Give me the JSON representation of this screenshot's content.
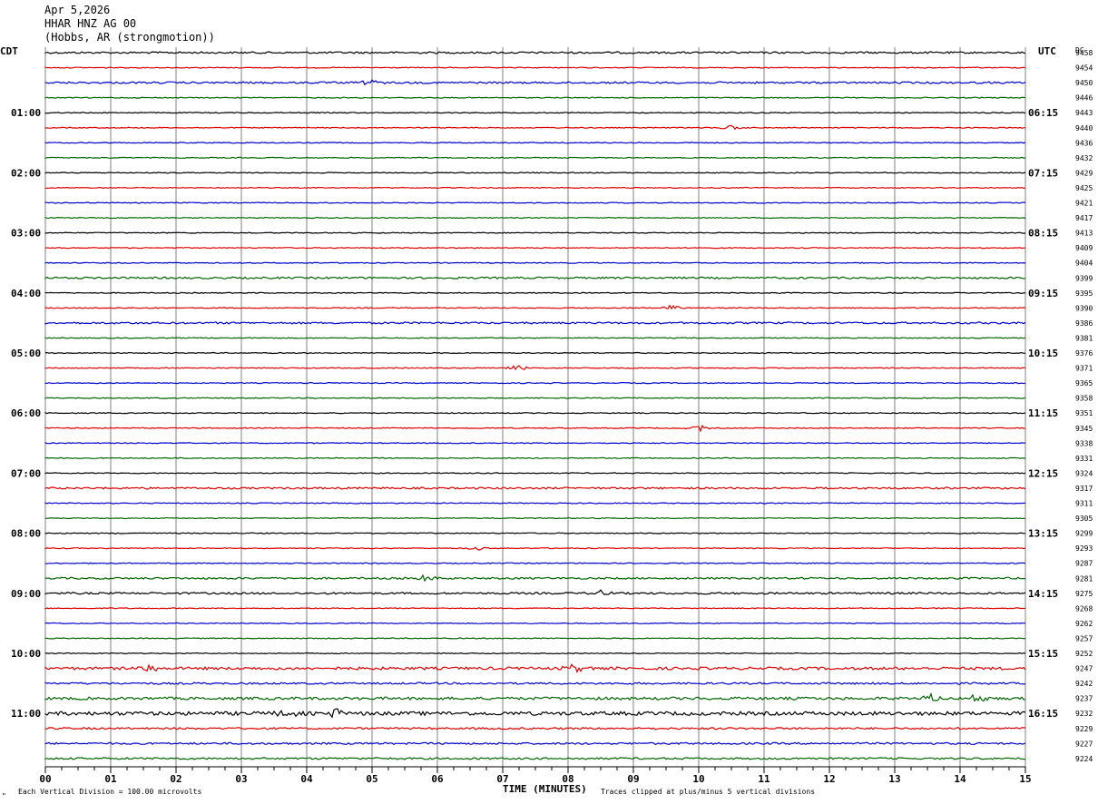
{
  "header": {
    "date": "Apr 5,2026",
    "channel": "HHAR HNZ AG 00",
    "location": "(Hobbs, AR (strongmotion))"
  },
  "labels": {
    "left_zone": "CDT",
    "right_zone": "UTC",
    "dc_header": "DC",
    "xlabel": "TIME (MINUTES)",
    "footer_left": "Each Vertical Division =  100.00 microvolts",
    "footer_right": "Traces clipped at plus/minus 5 vertical divisions",
    "corner_mark": "\""
  },
  "colors": {
    "cycle": [
      "#000000",
      "#e00000",
      "#0000d0",
      "#006600"
    ],
    "grid": "#808080"
  },
  "chart_data": {
    "type": "line",
    "title": "",
    "xlabel": "TIME (MINUTES)",
    "xlim": [
      0,
      15
    ],
    "x_ticks": [
      "00",
      "01",
      "02",
      "03",
      "04",
      "05",
      "06",
      "07",
      "08",
      "09",
      "10",
      "11",
      "12",
      "13",
      "14",
      "15"
    ],
    "left_hour_labels": [
      "01:00",
      "02:00",
      "03:00",
      "04:00",
      "05:00",
      "06:00",
      "07:00",
      "08:00",
      "09:00",
      "10:00",
      "11:00"
    ],
    "right_hour_labels": [
      "06:15",
      "07:15",
      "08:15",
      "09:15",
      "10:15",
      "11:15",
      "12:15",
      "13:15",
      "14:15",
      "15:15",
      "16:15"
    ],
    "dc_offsets": [
      9458,
      9454,
      9450,
      9446,
      9443,
      9440,
      9436,
      9432,
      9429,
      9425,
      9421,
      9417,
      9413,
      9409,
      9404,
      9399,
      9395,
      9390,
      9386,
      9381,
      9376,
      9371,
      9365,
      9358,
      9351,
      9345,
      9338,
      9331,
      9324,
      9317,
      9311,
      9305,
      9299,
      9293,
      9287,
      9281,
      9275,
      9268,
      9262,
      9257,
      9252,
      9247,
      9242,
      9237,
      9232,
      9229,
      9227,
      9224
    ],
    "trace_noise_level": [
      2,
      1,
      2,
      1,
      1,
      1,
      1,
      1,
      1,
      1,
      1,
      1,
      1,
      1,
      1,
      2,
      1,
      1,
      2,
      1,
      1,
      1,
      1,
      1,
      1,
      1,
      1,
      1,
      1,
      2,
      1,
      1,
      1,
      1,
      1,
      2,
      2,
      1,
      1,
      1,
      1,
      3,
      2,
      3,
      4,
      2,
      2,
      2
    ],
    "events": [
      {
        "trace": 2,
        "minute": 5.0,
        "amplitude": 3
      },
      {
        "trace": 5,
        "minute": 10.5,
        "amplitude": 3
      },
      {
        "trace": 17,
        "minute": 9.6,
        "amplitude": 3
      },
      {
        "trace": 21,
        "minute": 7.2,
        "amplitude": 3
      },
      {
        "trace": 25,
        "minute": 10.0,
        "amplitude": 4
      },
      {
        "trace": 33,
        "minute": 6.6,
        "amplitude": 2
      },
      {
        "trace": 35,
        "minute": 5.8,
        "amplitude": 4
      },
      {
        "trace": 36,
        "minute": 8.5,
        "amplitude": 3
      },
      {
        "trace": 41,
        "minute": 1.6,
        "amplitude": 5
      },
      {
        "trace": 41,
        "minute": 8.1,
        "amplitude": 4
      },
      {
        "trace": 43,
        "minute": 13.5,
        "amplitude": 5
      },
      {
        "trace": 43,
        "minute": 14.3,
        "amplitude": 5
      },
      {
        "trace": 44,
        "minute": 4.4,
        "amplitude": 8
      },
      {
        "trace": 44,
        "minute": 3.7,
        "amplitude": 5
      }
    ]
  }
}
